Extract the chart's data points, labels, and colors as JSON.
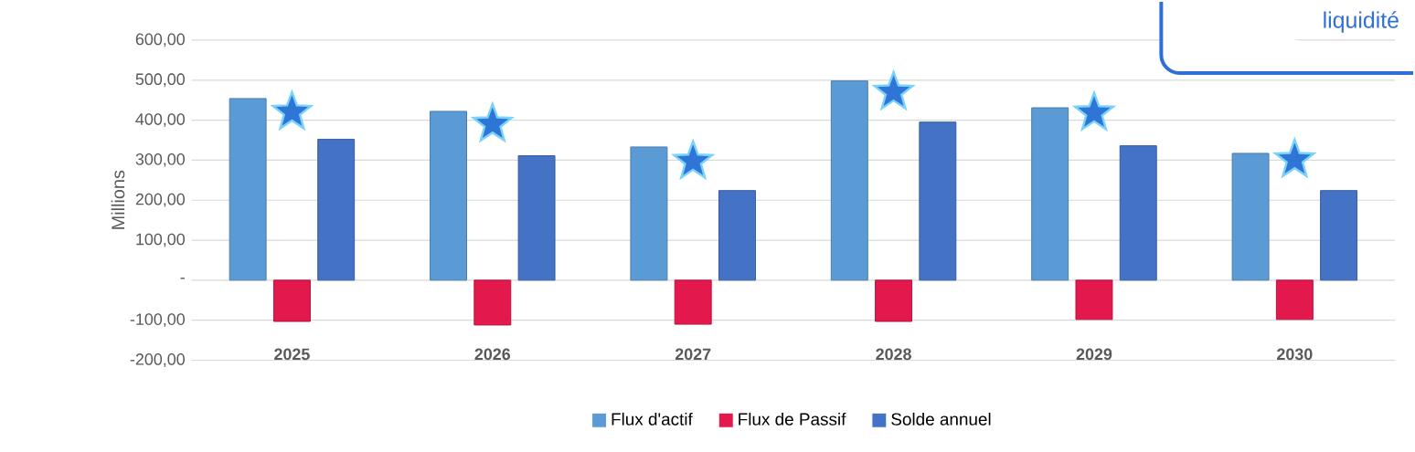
{
  "chart_data": {
    "type": "bar",
    "title": "liquidité",
    "ylabel": "Millions",
    "categories": [
      "2025",
      "2026",
      "2027",
      "2028",
      "2029",
      "2030"
    ],
    "series": [
      {
        "name": "Flux d'actif",
        "color": "#5b9bd5",
        "values": [
          454,
          422,
          333,
          498,
          431,
          317
        ]
      },
      {
        "name": "Flux de Passif",
        "color": "#e3184d",
        "values": [
          -103,
          -112,
          -110,
          -103,
          -98,
          -98
        ]
      },
      {
        "name": "Solde annuel",
        "color": "#4472c4",
        "values": [
          352,
          311,
          224,
          395,
          336,
          224
        ]
      },
      {
        "type": "scatter",
        "marker": "star",
        "color": "#2e75d6",
        "values": [
          420,
          390,
          297,
          470,
          418,
          301
        ]
      }
    ],
    "ylim": [
      -200,
      600
    ],
    "yticks": [
      {
        "value": -200,
        "label": "-200,00"
      },
      {
        "value": -100,
        "label": "-100,00"
      },
      {
        "value": 0,
        "label": "-"
      },
      {
        "value": 100,
        "label": "100,00"
      },
      {
        "value": 200,
        "label": "200,00"
      },
      {
        "value": 300,
        "label": "300,00"
      },
      {
        "value": 400,
        "label": "400,00"
      },
      {
        "value": 500,
        "label": "500,00"
      },
      {
        "value": 600,
        "label": "600,00"
      }
    ],
    "grid": "y",
    "legend": "bottom"
  }
}
